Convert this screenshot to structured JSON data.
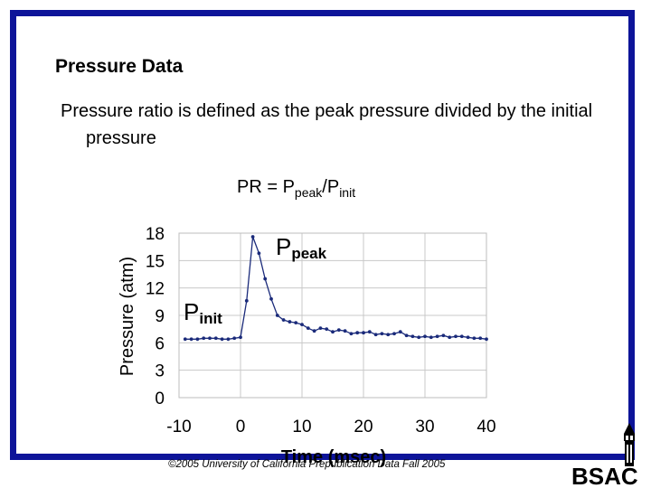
{
  "slide": {
    "title": "Pressure Data",
    "text": "Pressure ratio is defined as the peak pressure divided by the initial pressure",
    "formula": {
      "lhs": "PR = P",
      "sub1": "peak",
      "mid": "/P",
      "sub2": "init"
    },
    "peak_label": {
      "main": "P",
      "sub": "peak"
    },
    "init_label": {
      "main": "P",
      "sub": "init"
    },
    "footer": "©2005 University of California     Prepublication Data Fall 2005",
    "logo_text": "BSAC"
  },
  "chart_data": {
    "type": "line",
    "title": "",
    "xlabel": "Time (msec)",
    "ylabel": "Pressure (atm)",
    "xlim": [
      -10,
      40
    ],
    "ylim": [
      0,
      18
    ],
    "xticks": [
      "-10",
      "0",
      "10",
      "20",
      "30",
      "40"
    ],
    "yticks": [
      "0",
      "3",
      "6",
      "9",
      "12",
      "15",
      "18"
    ],
    "grid": true,
    "series_color": "#1a2a7a",
    "x": [
      -9,
      -8,
      -7,
      -6,
      -5,
      -4,
      -3,
      -2,
      -1,
      0,
      1,
      2,
      3,
      4,
      5,
      6,
      7,
      8,
      9,
      10,
      11,
      12,
      13,
      14,
      15,
      16,
      17,
      18,
      19,
      20,
      21,
      22,
      23,
      24,
      25,
      26,
      27,
      28,
      29,
      30,
      31,
      32,
      33,
      34,
      35,
      36,
      37,
      38,
      39,
      40
    ],
    "y": [
      6.4,
      6.4,
      6.4,
      6.5,
      6.5,
      6.5,
      6.4,
      6.4,
      6.5,
      6.6,
      10.6,
      17.6,
      15.8,
      13.0,
      10.8,
      9.0,
      8.5,
      8.3,
      8.2,
      8.0,
      7.6,
      7.3,
      7.6,
      7.5,
      7.2,
      7.4,
      7.3,
      7.0,
      7.1,
      7.1,
      7.2,
      6.9,
      7.0,
      6.9,
      7.0,
      7.2,
      6.8,
      6.7,
      6.6,
      6.7,
      6.6,
      6.7,
      6.8,
      6.6,
      6.7,
      6.7,
      6.6,
      6.5,
      6.5,
      6.4
    ]
  }
}
